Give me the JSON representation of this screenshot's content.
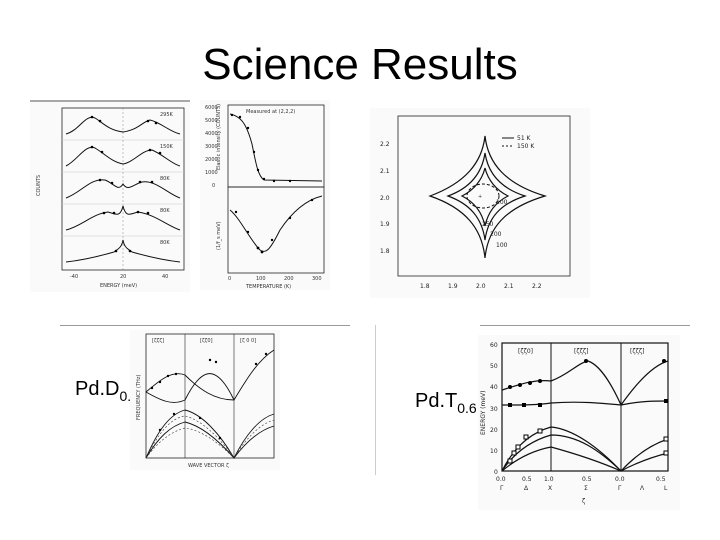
{
  "slide": {
    "title": "Science Results",
    "label_left": {
      "base": "Pd.D",
      "sub": "0.6"
    },
    "label_right": {
      "base": "Pd.T",
      "sub": "0.6"
    }
  },
  "figures": {
    "fig_a": {
      "panel_temps": [
        "295K",
        "150K",
        "80K",
        "80K",
        "80K"
      ],
      "ylabel": "COUNTS",
      "xlabel": "ENERGY (meV)",
      "xticks": [
        "-40",
        "20",
        "40"
      ]
    },
    "fig_b": {
      "legend": "Measured at (2,2,2)",
      "y1label": "Elastic intensity (COUNTS)",
      "y1ticks": [
        "6000",
        "5000",
        "4000",
        "3000",
        "2000",
        "1000",
        "0"
      ],
      "y2label": "(1/f_s meV)",
      "xlabel": "TEMPERATURE (K)",
      "xticks": [
        "0",
        "100",
        "200",
        "300"
      ]
    },
    "fig_c": {
      "legend_solid": "51 K",
      "legend_dashed": "150 K",
      "contour_labels": [
        "100",
        "250",
        "200",
        "100"
      ],
      "yticks": [
        "2.2",
        "2.1",
        "2.0",
        "1.9",
        "1.8"
      ],
      "xticks": [
        "1.8",
        "1.9",
        "2.0",
        "2.1",
        "2.2"
      ]
    },
    "fig_d": {
      "sections": [
        "[ζζζ]",
        "[ζζ0]",
        "[ζ 0 0]"
      ],
      "ylabel": "FREQUENCY (THz)",
      "xlabel": "WAVE VECTOR ζ"
    },
    "fig_e": {
      "sections": [
        "[ζζ0]",
        "[ζζζ]",
        "[ζζζ]"
      ],
      "ylabel": "ENERGY (meV)",
      "yticks": [
        "60",
        "50",
        "40",
        "30",
        "20",
        "10",
        "0"
      ],
      "xticks": [
        "0.0",
        "0.5",
        "1.0",
        "0.5",
        "0.0",
        "0.5"
      ],
      "points": [
        "Γ",
        "Δ",
        "X",
        "Σ",
        "Γ",
        "Λ",
        "L"
      ],
      "xlabel": "ζ"
    }
  }
}
